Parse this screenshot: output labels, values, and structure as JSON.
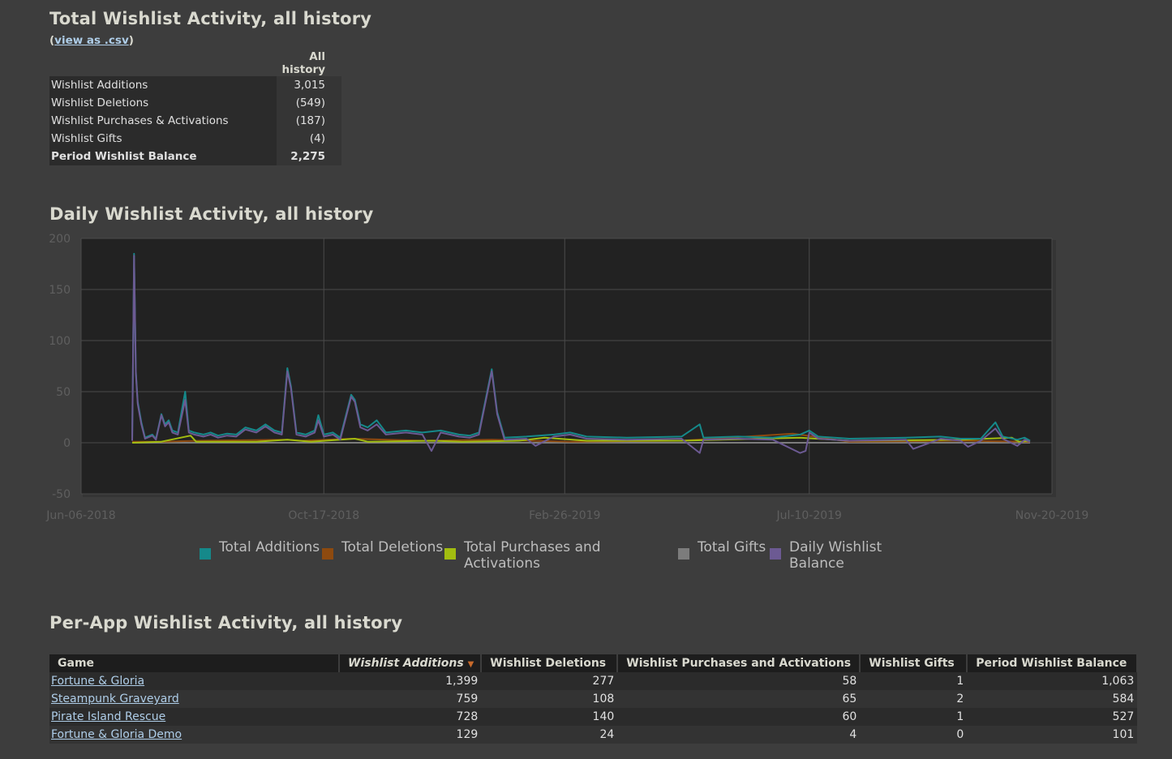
{
  "summary": {
    "title": "Total Wishlist Activity, all history",
    "csv_prefix": "(",
    "csv_link": "view as .csv",
    "csv_suffix": ")",
    "column_header": "All history",
    "rows": [
      {
        "label": "Wishlist Additions",
        "value": "3,015"
      },
      {
        "label": "Wishlist Deletions",
        "value": "(549)"
      },
      {
        "label": "Wishlist Purchases & Activations",
        "value": "(187)"
      },
      {
        "label": "Wishlist Gifts",
        "value": "(4)"
      },
      {
        "label": "Period Wishlist Balance",
        "value": "2,275"
      }
    ]
  },
  "daily": {
    "title": "Daily Wishlist Activity, all history",
    "legend": [
      {
        "label": "Total Additions",
        "color": "#15898a"
      },
      {
        "label": "Total Deletions",
        "color": "#8e4a0f"
      },
      {
        "label": "Total Purchases and Activations",
        "color": "#a2bd10"
      },
      {
        "label": "Total Gifts",
        "color": "#7c7c7c"
      },
      {
        "label": "Daily Wishlist Balance",
        "color": "#6c5a93"
      }
    ]
  },
  "chart_data": {
    "type": "line",
    "ylim": [
      -50,
      200
    ],
    "yticks": [
      200,
      150,
      100,
      50,
      0,
      -50
    ],
    "xticks": [
      "Jun-06-2018",
      "Oct-17-2018",
      "Feb-26-2019",
      "Jul-10-2019",
      "Nov-20-2019"
    ],
    "x_start": "Jun-06-2018",
    "x_end": "Nov-20-2019",
    "grid": true,
    "legend_position": "bottom",
    "series": [
      {
        "name": "Total Additions",
        "color": "#15898a",
        "points": [
          [
            "2018-07-04",
            2
          ],
          [
            "2018-07-05",
            185
          ],
          [
            "2018-07-06",
            70
          ],
          [
            "2018-07-07",
            40
          ],
          [
            "2018-07-09",
            20
          ],
          [
            "2018-07-11",
            5
          ],
          [
            "2018-07-15",
            8
          ],
          [
            "2018-07-17",
            4
          ],
          [
            "2018-07-20",
            28
          ],
          [
            "2018-07-22",
            18
          ],
          [
            "2018-07-24",
            22
          ],
          [
            "2018-07-26",
            12
          ],
          [
            "2018-07-29",
            10
          ],
          [
            "2018-08-02",
            50
          ],
          [
            "2018-08-04",
            12
          ],
          [
            "2018-08-07",
            10
          ],
          [
            "2018-08-12",
            8
          ],
          [
            "2018-08-16",
            10
          ],
          [
            "2018-08-20",
            7
          ],
          [
            "2018-08-25",
            9
          ],
          [
            "2018-08-30",
            8
          ],
          [
            "2018-09-04",
            15
          ],
          [
            "2018-09-10",
            12
          ],
          [
            "2018-09-15",
            18
          ],
          [
            "2018-09-20",
            12
          ],
          [
            "2018-09-24",
            10
          ],
          [
            "2018-09-27",
            73
          ],
          [
            "2018-09-29",
            55
          ],
          [
            "2018-10-02",
            10
          ],
          [
            "2018-10-07",
            8
          ],
          [
            "2018-10-12",
            12
          ],
          [
            "2018-10-14",
            27
          ],
          [
            "2018-10-17",
            8
          ],
          [
            "2018-10-22",
            10
          ],
          [
            "2018-10-26",
            5
          ],
          [
            "2018-11-01",
            47
          ],
          [
            "2018-11-03",
            42
          ],
          [
            "2018-11-06",
            18
          ],
          [
            "2018-11-10",
            15
          ],
          [
            "2018-11-15",
            22
          ],
          [
            "2018-11-20",
            10
          ],
          [
            "2018-12-01",
            12
          ],
          [
            "2018-12-10",
            10
          ],
          [
            "2018-12-20",
            12
          ],
          [
            "2018-12-30",
            8
          ],
          [
            "2019-01-05",
            7
          ],
          [
            "2019-01-10",
            10
          ],
          [
            "2019-01-17",
            72
          ],
          [
            "2019-01-20",
            30
          ],
          [
            "2019-01-24",
            5
          ],
          [
            "2019-02-05",
            6
          ],
          [
            "2019-02-20",
            8
          ],
          [
            "2019-03-01",
            10
          ],
          [
            "2019-03-10",
            6
          ],
          [
            "2019-04-01",
            5
          ],
          [
            "2019-05-01",
            6
          ],
          [
            "2019-05-11",
            18
          ],
          [
            "2019-05-13",
            5
          ],
          [
            "2019-06-01",
            6
          ],
          [
            "2019-06-20",
            5
          ],
          [
            "2019-07-05",
            8
          ],
          [
            "2019-07-10",
            12
          ],
          [
            "2019-07-15",
            6
          ],
          [
            "2019-08-01",
            4
          ],
          [
            "2019-09-01",
            5
          ],
          [
            "2019-09-20",
            6
          ],
          [
            "2019-10-01",
            4
          ],
          [
            "2019-10-12",
            4
          ],
          [
            "2019-10-20",
            20
          ],
          [
            "2019-10-24",
            6
          ],
          [
            "2019-11-01",
            3
          ],
          [
            "2019-11-05",
            5
          ],
          [
            "2019-11-08",
            2
          ]
        ]
      },
      {
        "name": "Total Deletions",
        "color": "#8e4a0f",
        "points": [
          [
            "2018-07-04",
            1
          ],
          [
            "2018-07-20",
            1
          ],
          [
            "2018-08-10",
            2
          ],
          [
            "2018-09-27",
            3
          ],
          [
            "2018-10-05",
            2
          ],
          [
            "2018-11-01",
            4
          ],
          [
            "2018-12-10",
            2
          ],
          [
            "2019-01-17",
            3
          ],
          [
            "2019-03-01",
            1
          ],
          [
            "2019-05-01",
            2
          ],
          [
            "2019-07-01",
            9
          ],
          [
            "2019-08-01",
            1
          ],
          [
            "2019-10-01",
            2
          ],
          [
            "2019-11-08",
            1
          ]
        ]
      },
      {
        "name": "Total Purchases and Activations",
        "color": "#a2bd10",
        "points": [
          [
            "2018-07-04",
            0
          ],
          [
            "2018-07-20",
            1
          ],
          [
            "2018-08-05",
            7
          ],
          [
            "2018-08-08",
            1
          ],
          [
            "2018-09-10",
            1
          ],
          [
            "2018-09-27",
            3
          ],
          [
            "2018-10-10",
            1
          ],
          [
            "2018-11-03",
            4
          ],
          [
            "2018-11-10",
            1
          ],
          [
            "2018-12-15",
            2
          ],
          [
            "2019-01-01",
            1
          ],
          [
            "2019-02-01",
            2
          ],
          [
            "2019-02-15",
            5
          ],
          [
            "2019-03-10",
            2
          ],
          [
            "2019-05-01",
            2
          ],
          [
            "2019-07-05",
            5
          ],
          [
            "2019-08-01",
            2
          ],
          [
            "2019-10-01",
            3
          ],
          [
            "2019-10-29",
            5
          ],
          [
            "2019-11-02",
            1
          ],
          [
            "2019-11-08",
            2
          ]
        ]
      },
      {
        "name": "Total Gifts",
        "color": "#7c7c7c",
        "points": [
          [
            "2018-07-04",
            0
          ],
          [
            "2019-11-08",
            0
          ]
        ]
      },
      {
        "name": "Daily Wishlist Balance",
        "color": "#6c5a93",
        "points": [
          [
            "2018-07-04",
            2
          ],
          [
            "2018-07-05",
            183
          ],
          [
            "2018-07-06",
            68
          ],
          [
            "2018-07-07",
            38
          ],
          [
            "2018-07-09",
            18
          ],
          [
            "2018-07-11",
            4
          ],
          [
            "2018-07-15",
            7
          ],
          [
            "2018-07-17",
            3
          ],
          [
            "2018-07-20",
            27
          ],
          [
            "2018-07-22",
            16
          ],
          [
            "2018-07-24",
            20
          ],
          [
            "2018-07-26",
            10
          ],
          [
            "2018-07-29",
            8
          ],
          [
            "2018-08-02",
            42
          ],
          [
            "2018-08-04",
            10
          ],
          [
            "2018-08-07",
            8
          ],
          [
            "2018-08-12",
            6
          ],
          [
            "2018-08-16",
            8
          ],
          [
            "2018-08-20",
            5
          ],
          [
            "2018-08-25",
            7
          ],
          [
            "2018-08-30",
            6
          ],
          [
            "2018-09-04",
            13
          ],
          [
            "2018-09-10",
            10
          ],
          [
            "2018-09-15",
            16
          ],
          [
            "2018-09-20",
            10
          ],
          [
            "2018-09-24",
            8
          ],
          [
            "2018-09-27",
            70
          ],
          [
            "2018-09-29",
            53
          ],
          [
            "2018-10-02",
            8
          ],
          [
            "2018-10-07",
            6
          ],
          [
            "2018-10-12",
            10
          ],
          [
            "2018-10-14",
            22
          ],
          [
            "2018-10-17",
            6
          ],
          [
            "2018-10-22",
            8
          ],
          [
            "2018-10-26",
            3
          ],
          [
            "2018-11-01",
            45
          ],
          [
            "2018-11-03",
            40
          ],
          [
            "2018-11-06",
            15
          ],
          [
            "2018-11-10",
            12
          ],
          [
            "2018-11-15",
            18
          ],
          [
            "2018-11-20",
            8
          ],
          [
            "2018-12-01",
            10
          ],
          [
            "2018-12-10",
            8
          ],
          [
            "2018-12-15",
            -8
          ],
          [
            "2018-12-20",
            10
          ],
          [
            "2018-12-30",
            6
          ],
          [
            "2019-01-05",
            5
          ],
          [
            "2019-01-10",
            8
          ],
          [
            "2019-01-17",
            70
          ],
          [
            "2019-01-20",
            28
          ],
          [
            "2019-01-24",
            3
          ],
          [
            "2019-02-05",
            4
          ],
          [
            "2019-02-10",
            -3
          ],
          [
            "2019-02-20",
            6
          ],
          [
            "2019-03-01",
            8
          ],
          [
            "2019-03-10",
            4
          ],
          [
            "2019-04-01",
            3
          ],
          [
            "2019-05-01",
            4
          ],
          [
            "2019-05-11",
            -10
          ],
          [
            "2019-05-13",
            3
          ],
          [
            "2019-06-01",
            4
          ],
          [
            "2019-06-20",
            3
          ],
          [
            "2019-07-05",
            -10
          ],
          [
            "2019-07-08",
            -8
          ],
          [
            "2019-07-10",
            10
          ],
          [
            "2019-07-15",
            4
          ],
          [
            "2019-08-01",
            2
          ],
          [
            "2019-09-01",
            3
          ],
          [
            "2019-09-05",
            -6
          ],
          [
            "2019-09-20",
            4
          ],
          [
            "2019-10-01",
            2
          ],
          [
            "2019-10-05",
            -4
          ],
          [
            "2019-10-12",
            2
          ],
          [
            "2019-10-20",
            14
          ],
          [
            "2019-10-24",
            4
          ],
          [
            "2019-11-01",
            -3
          ],
          [
            "2019-11-05",
            3
          ],
          [
            "2019-11-08",
            1
          ]
        ]
      }
    ]
  },
  "perapp": {
    "title": "Per-App Wishlist Activity, all history",
    "sort_arrow": "▼",
    "columns": [
      "Game",
      "Wishlist Additions",
      "Wishlist Deletions",
      "Wishlist Purchases and Activations",
      "Wishlist Gifts",
      "Period Wishlist Balance"
    ],
    "rows": [
      {
        "game": "Fortune & Gloria",
        "additions": "1,399",
        "deletions": "277",
        "purchases": "58",
        "gifts": "1",
        "balance": "1,063"
      },
      {
        "game": "Steampunk Graveyard",
        "additions": "759",
        "deletions": "108",
        "purchases": "65",
        "gifts": "2",
        "balance": "584"
      },
      {
        "game": "Pirate Island Rescue",
        "additions": "728",
        "deletions": "140",
        "purchases": "60",
        "gifts": "1",
        "balance": "527"
      },
      {
        "game": "Fortune & Gloria Demo",
        "additions": "129",
        "deletions": "24",
        "purchases": "4",
        "gifts": "0",
        "balance": "101"
      }
    ]
  }
}
